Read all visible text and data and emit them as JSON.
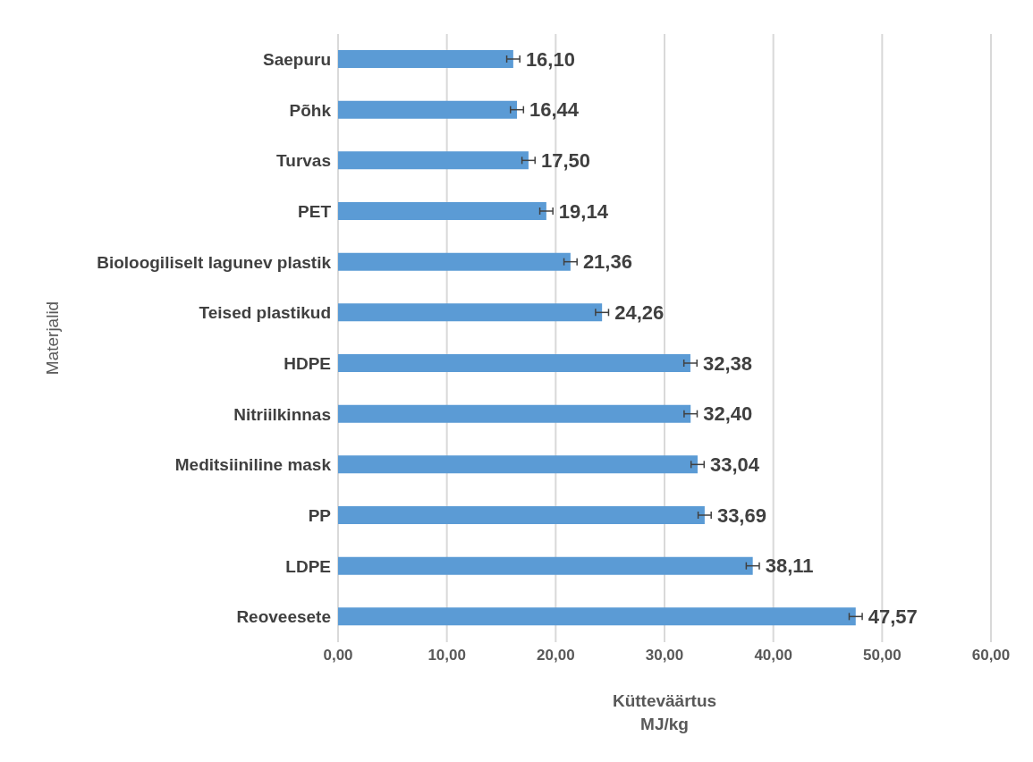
{
  "chart_data": {
    "type": "bar",
    "orientation": "horizontal",
    "xlabel": "Kütteväärtus\nMJ/kg",
    "ylabel": "Materjalid",
    "categories": [
      "Saepuru",
      "Põhk",
      "Turvas",
      "PET",
      "Bioloogiliselt lagunev plastik",
      "Teised plastikud",
      "HDPE",
      "Nitriilkinnas",
      "Meditsiiniline mask",
      "PP",
      "LDPE",
      "Reoveesete"
    ],
    "values": [
      16.1,
      16.44,
      17.5,
      19.14,
      21.36,
      24.26,
      32.38,
      32.4,
      33.04,
      33.69,
      38.11,
      47.57
    ],
    "value_labels": [
      "16,10",
      "16,44",
      "17,50",
      "19,14",
      "21,36",
      "24,26",
      "32,38",
      "32,40",
      "33,04",
      "33,69",
      "38,11",
      "47,57"
    ],
    "errors": [
      0.6,
      0.6,
      0.6,
      0.6,
      0.6,
      0.6,
      0.6,
      0.6,
      0.6,
      0.6,
      0.6,
      0.6
    ],
    "color": "#5b9bd5",
    "xlim": [
      0,
      60
    ],
    "xticks": [
      {
        "value": 0,
        "label": "0,00"
      },
      {
        "value": 10,
        "label": "10,00"
      },
      {
        "value": 20,
        "label": "20,00"
      },
      {
        "value": 30,
        "label": "30,00"
      },
      {
        "value": 40,
        "label": "40,00"
      },
      {
        "value": 50,
        "label": "50,00"
      },
      {
        "value": 60,
        "label": "60,00"
      }
    ],
    "grid": "x",
    "legend": false
  }
}
